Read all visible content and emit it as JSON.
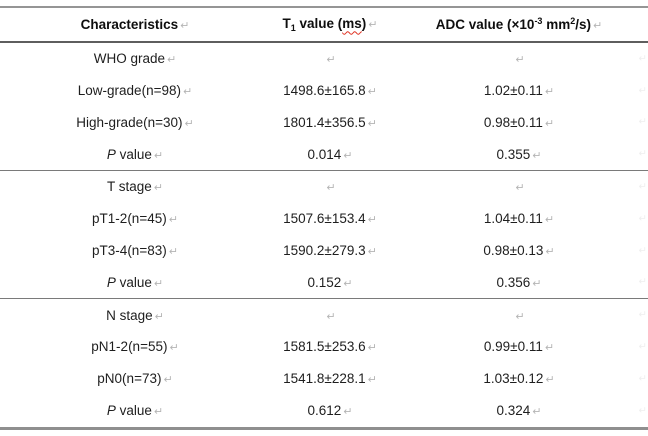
{
  "table": {
    "pilcrow": "↵",
    "header": {
      "characteristics": "Characteristics",
      "t1_base": "T",
      "t1_sub": "1",
      "t1_mid": " value (",
      "t1_unit": "ms",
      "t1_end": ")",
      "adc_pre": "ADC value (×10",
      "adc_sup1": "-3",
      "adc_mid": " mm",
      "adc_sup2": "2",
      "adc_end": "/s)"
    },
    "rows": [
      {
        "kind": "group",
        "label": "WHO grade",
        "t1": "",
        "adc": ""
      },
      {
        "kind": "data",
        "label": "Low-grade(n=98)",
        "t1": "1498.6±165.8",
        "adc": "1.02±0.11"
      },
      {
        "kind": "data",
        "label": "High-grade(n=30)",
        "t1": "1801.4±356.5",
        "adc": "0.98±0.11"
      },
      {
        "kind": "pvalue",
        "label_italic": "P",
        "label_rest": " value",
        "t1": "0.014",
        "adc": "0.355",
        "separator_after": true
      },
      {
        "kind": "group",
        "label": "T stage",
        "t1": "",
        "adc": ""
      },
      {
        "kind": "data",
        "label": "pT1-2(n=45)",
        "t1": "1507.6±153.4",
        "adc": "1.04±0.11"
      },
      {
        "kind": "data",
        "label": "pT3-4(n=83)",
        "t1": "1590.2±279.3",
        "adc": "0.98±0.13"
      },
      {
        "kind": "pvalue",
        "label_italic": "P",
        "label_rest": " value",
        "t1": "0.152",
        "adc": "0.356",
        "separator_after": true
      },
      {
        "kind": "group",
        "label": "N stage",
        "t1": "",
        "adc": ""
      },
      {
        "kind": "data",
        "label": "pN1-2(n=55)",
        "t1": "1581.5±253.6",
        "adc": "0.99±0.11"
      },
      {
        "kind": "data",
        "label": "pN0(n=73)",
        "t1": "1541.8±228.1",
        "adc": "1.03±0.12"
      },
      {
        "kind": "pvalue",
        "label_italic": "P",
        "label_rest": " value",
        "t1": "0.612",
        "adc": "0.324"
      }
    ],
    "colors": {
      "text": "#1e1e1e",
      "pilcrow_gray": "#b5b5b5",
      "squiggle_red": "#e03222",
      "rule_dark": "#5e5e5e",
      "rule_gray": "#8f8f8f"
    }
  }
}
